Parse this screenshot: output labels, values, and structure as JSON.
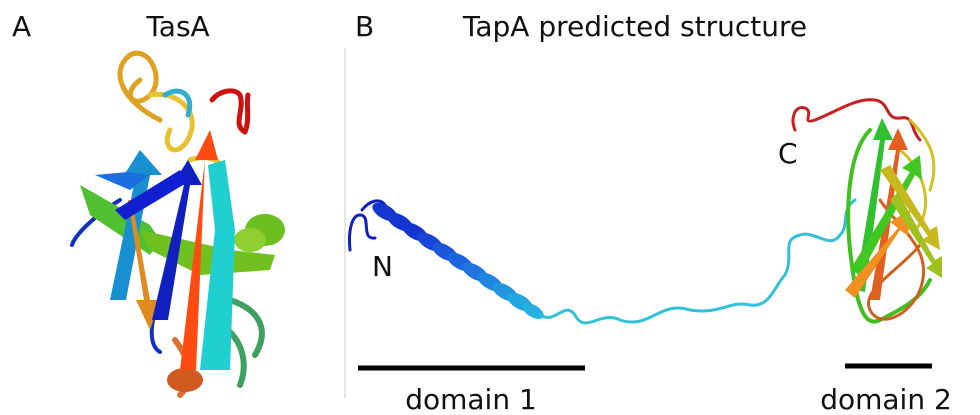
{
  "panel_a": {
    "label": "A",
    "title": "TasA"
  },
  "panel_b": {
    "label": "B",
    "title": "TapA predicted structure",
    "n_terminus": "N",
    "c_terminus": "C",
    "scale_bars": [
      {
        "label": "domain 1"
      },
      {
        "label": "domain 2"
      }
    ]
  }
}
